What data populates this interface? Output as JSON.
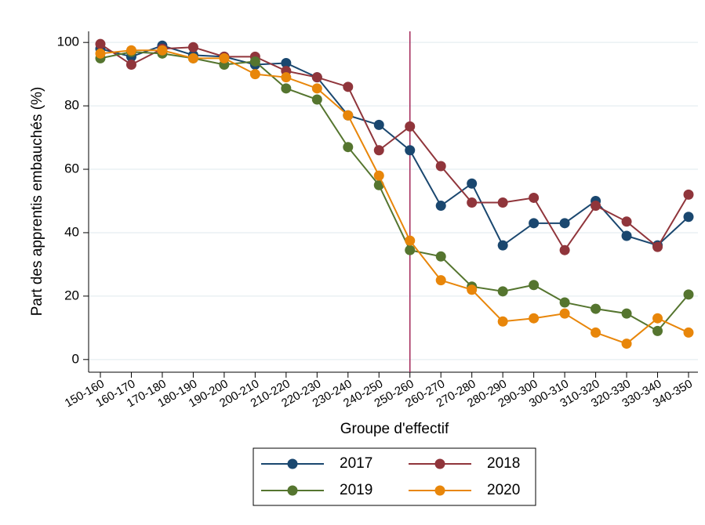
{
  "chart_data": {
    "type": "line",
    "y_label": "Part des apprentis embauchés (%)",
    "x_label": "Groupe d'effectif",
    "categories": [
      "150-160",
      "160-170",
      "170-180",
      "180-190",
      "190-200",
      "200-210",
      "210-220",
      "220-230",
      "230-240",
      "240-250",
      "250-260",
      "260-270",
      "270-280",
      "280-290",
      "290-300",
      "300-310",
      "310-320",
      "320-330",
      "330-340",
      "340-350"
    ],
    "series": [
      {
        "name": "2017",
        "color": "#1a476f",
        "values": [
          98,
          95.5,
          99,
          96,
          95.5,
          93,
          93.5,
          89,
          77,
          74,
          66,
          48.5,
          55.5,
          36,
          43,
          43,
          50,
          39,
          36,
          45
        ]
      },
      {
        "name": "2018",
        "color": "#90353b",
        "values": [
          99.5,
          93,
          98,
          98.5,
          95.5,
          95.5,
          91,
          89,
          86,
          66,
          73.5,
          61,
          49.5,
          49.5,
          51,
          34.5,
          48.5,
          43.5,
          35.5,
          52
        ]
      },
      {
        "name": "2019",
        "color": "#55752f",
        "values": [
          95,
          97,
          96.5,
          95,
          93,
          94,
          85.5,
          82,
          67,
          55,
          34.5,
          32.5,
          23,
          21.5,
          23.5,
          18,
          16,
          14.5,
          9,
          20.5
        ]
      },
      {
        "name": "2020",
        "color": "#e8860a",
        "values": [
          96.5,
          97.5,
          97.5,
          95,
          95,
          90,
          89,
          85.5,
          77,
          58,
          37.5,
          25,
          22,
          12,
          13,
          14.5,
          8.5,
          5,
          13,
          8.5
        ]
      }
    ],
    "ylim": [
      -4,
      103.5
    ],
    "yticks": [
      0,
      20,
      40,
      60,
      80,
      100
    ],
    "grid": true,
    "vline": {
      "at": "250-260",
      "color": "#a3285a"
    },
    "legend": "bottom"
  }
}
